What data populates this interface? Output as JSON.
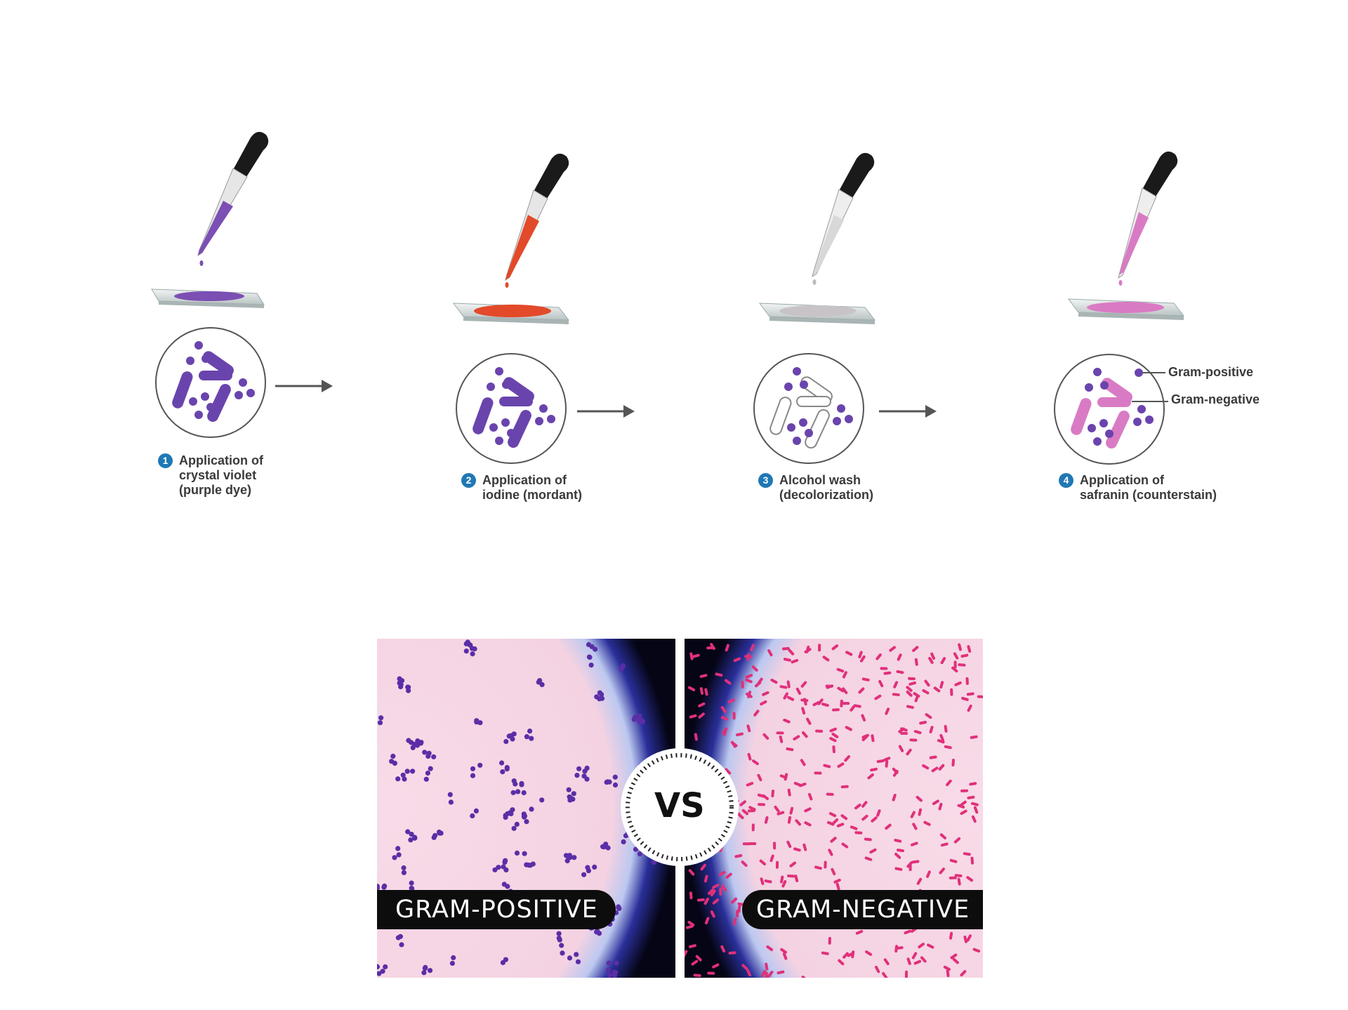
{
  "steps": [
    {
      "number": "1",
      "label": "Application of\ncrystal violet\n(purple dye)",
      "color": "#7b4fb3"
    },
    {
      "number": "2",
      "label": "Application of\niodine (mordant)",
      "color": "#e24a2a"
    },
    {
      "number": "3",
      "label": "Alcohol wash\n(decolorization)",
      "color": "#c7c3c6"
    },
    {
      "number": "4",
      "label": "Application of\nsafranin (counterstain)",
      "color": "#d97bc4"
    }
  ],
  "callouts": {
    "positive": "Gram-positive",
    "negative": "Gram-negative"
  },
  "comparison": {
    "left_label": "GRAM-POSITIVE",
    "right_label": "GRAM-NEGATIVE",
    "vs": "VS",
    "positive_color": "#5a2ea6",
    "negative_color": "#e0307a",
    "background_color": "#f6d9e6"
  },
  "icons": [
    "dropper-icon",
    "slide-icon",
    "arrow-icon"
  ]
}
